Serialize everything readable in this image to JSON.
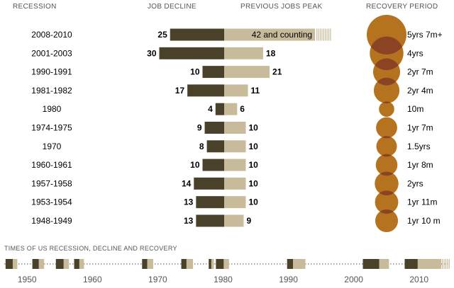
{
  "headers": {
    "recession": "RECESSION",
    "job_decline": "JOB DECLINE",
    "previous_jobs_peak": "PREVIOUS JOBS PEAK",
    "recovery_period": "RECOVERY PERIOD"
  },
  "bottom_title": "TIMES OF US RECESSION, DECLINE AND RECOVERY",
  "colors": {
    "decline": "#4a412a",
    "recovery": "#c8bb9b",
    "bubble": "#b5731f",
    "bubble_overlap": "#8a4424",
    "text": "#000000"
  },
  "chart_data": [
    {
      "type": "bar",
      "subtype": "diverging-bar-with-bubbles",
      "rows": [
        {
          "recession": "2008-2010",
          "decline": 25,
          "recovery": 42,
          "recovery_label": "42 and counting",
          "ongoing": true,
          "recovery_period": "5yrs 7m+",
          "recovery_months": 67
        },
        {
          "recession": "2001-2003",
          "decline": 30,
          "recovery": 18,
          "recovery_label": "18",
          "ongoing": false,
          "recovery_period": "4yrs",
          "recovery_months": 48
        },
        {
          "recession": "1990-1991",
          "decline": 10,
          "recovery": 21,
          "recovery_label": "21",
          "ongoing": false,
          "recovery_period": "2yr 7m",
          "recovery_months": 31
        },
        {
          "recession": "1981-1982",
          "decline": 17,
          "recovery": 11,
          "recovery_label": "11",
          "ongoing": false,
          "recovery_period": "2yr 4m",
          "recovery_months": 28
        },
        {
          "recession": "1980",
          "decline": 4,
          "recovery": 6,
          "recovery_label": "6",
          "ongoing": false,
          "recovery_period": "10m",
          "recovery_months": 10
        },
        {
          "recession": "1974-1975",
          "decline": 9,
          "recovery": 10,
          "recovery_label": "10",
          "ongoing": false,
          "recovery_period": "1yr 7m",
          "recovery_months": 19
        },
        {
          "recession": "1970",
          "decline": 8,
          "recovery": 10,
          "recovery_label": "10",
          "ongoing": false,
          "recovery_period": "1.5yrs",
          "recovery_months": 18
        },
        {
          "recession": "1960-1961",
          "decline": 10,
          "recovery": 10,
          "recovery_label": "10",
          "ongoing": false,
          "recovery_period": "1yr 8m",
          "recovery_months": 20
        },
        {
          "recession": "1957-1958",
          "decline": 14,
          "recovery": 10,
          "recovery_label": "10",
          "ongoing": false,
          "recovery_period": "2yrs",
          "recovery_months": 24
        },
        {
          "recession": "1953-1954",
          "decline": 13,
          "recovery": 10,
          "recovery_label": "10",
          "ongoing": false,
          "recovery_period": "1yr 11m",
          "recovery_months": 23
        },
        {
          "recession": "1948-1949",
          "decline": 13,
          "recovery": 9,
          "recovery_label": "9",
          "ongoing": false,
          "recovery_period": "1yr 10 m",
          "recovery_months": 22
        }
      ]
    },
    {
      "type": "timeline",
      "title": "TIMES OF US RECESSION, DECLINE AND RECOVERY",
      "axis_ticks": [
        1950,
        1960,
        1970,
        1980,
        1990,
        2000,
        2010
      ],
      "xlim": [
        1946.5,
        2014.7
      ],
      "spans": [
        {
          "decline_start": 1946.7,
          "decline_end": 1947.8,
          "recovery_end": 1948.5
        },
        {
          "decline_start": 1950.8,
          "decline_end": 1951.8,
          "recovery_end": 1952.6
        },
        {
          "decline_start": 1954.4,
          "decline_end": 1955.6,
          "recovery_end": 1956.4
        },
        {
          "decline_start": 1957.2,
          "decline_end": 1958.0,
          "recovery_end": 1958.7
        },
        {
          "decline_start": 1967.6,
          "decline_end": 1968.4,
          "recovery_end": 1969.3
        },
        {
          "decline_start": 1973.6,
          "decline_end": 1974.4,
          "recovery_end": 1975.4
        },
        {
          "decline_start": 1977.8,
          "decline_end": 1978.2,
          "recovery_end": 1978.6
        },
        {
          "decline_start": 1978.9,
          "decline_end": 1980.1,
          "recovery_end": 1980.9
        },
        {
          "decline_start": 1989.8,
          "decline_end": 1990.7,
          "recovery_end": 1992.6
        },
        {
          "decline_start": 2001.4,
          "decline_end": 2003.9,
          "recovery_end": 2005.4
        },
        {
          "decline_start": 2007.8,
          "decline_end": 2009.8,
          "recovery_end": 2013.4,
          "ongoing_end": 2014.6
        }
      ]
    }
  ]
}
